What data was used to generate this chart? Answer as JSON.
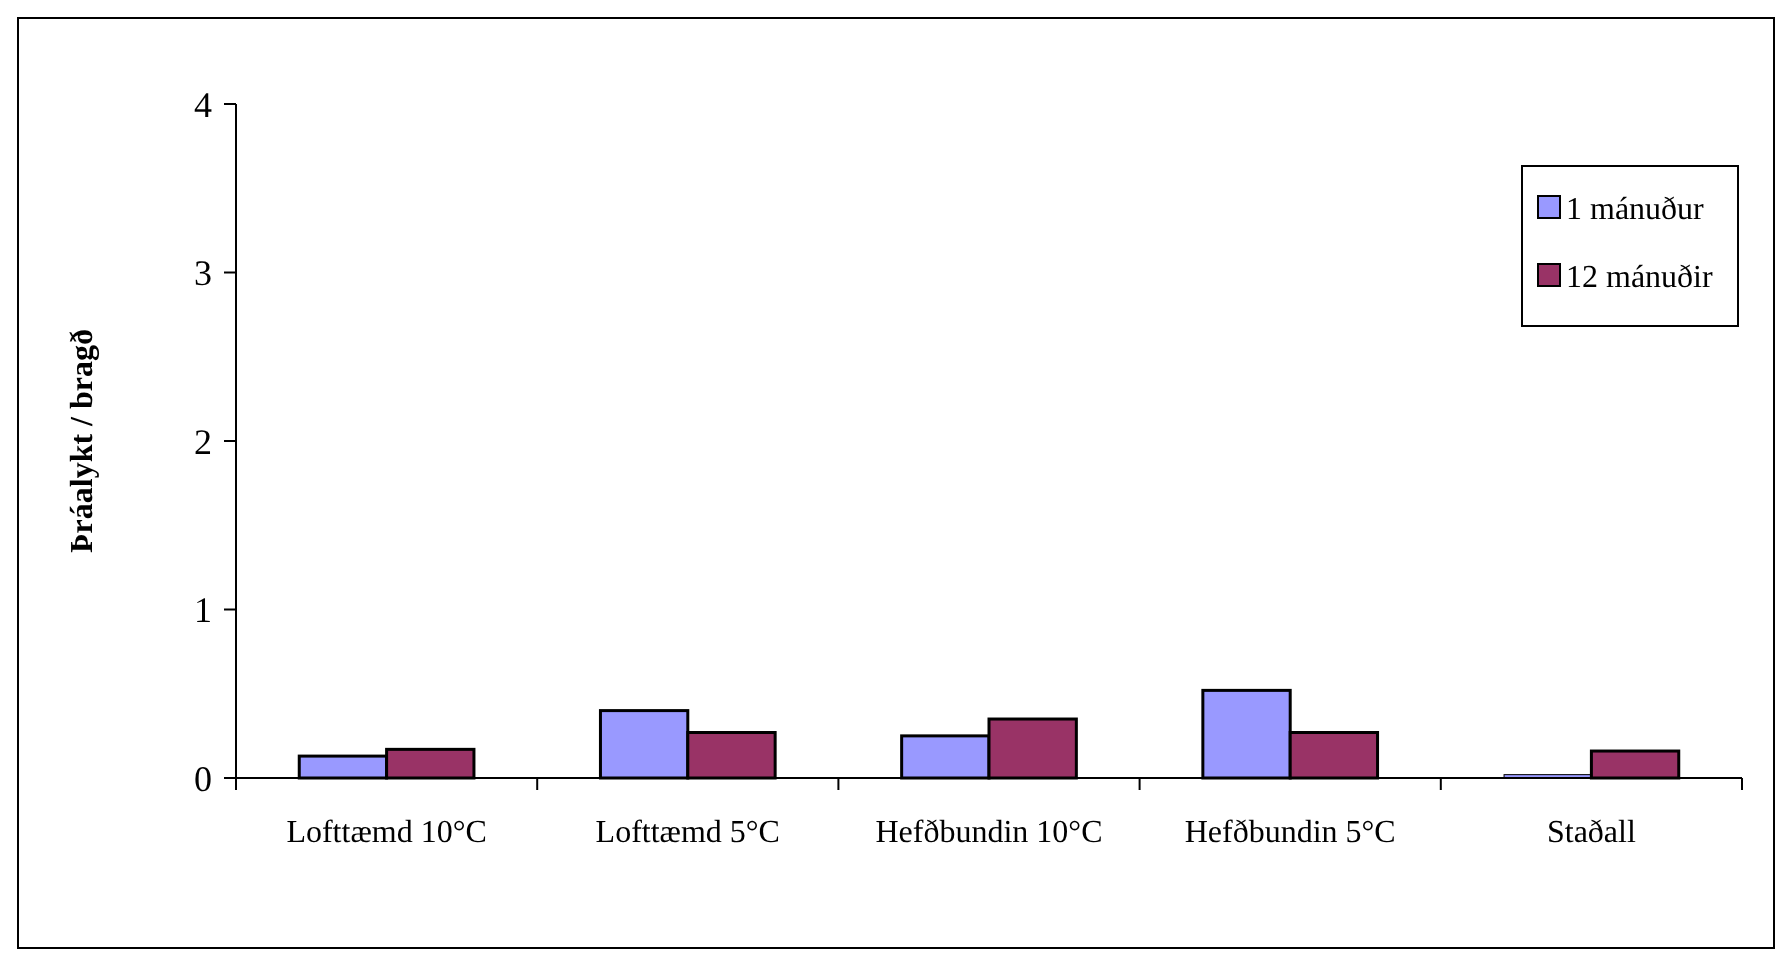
{
  "chart_data": {
    "type": "bar",
    "ylabel": "Þráalykt / bragð",
    "categories": [
      "Lofttæmd 10°C",
      "Lofttæmd 5°C",
      "Hefðbundin 10°C",
      "Hefðbundin 5°C",
      "Staðall"
    ],
    "series": [
      {
        "name": "1 mánuður",
        "color": "#9999ff",
        "values": [
          0.13,
          0.4,
          0.25,
          0.52,
          0.02
        ]
      },
      {
        "name": "12 mánuðir",
        "color": "#993366",
        "values": [
          0.17,
          0.27,
          0.35,
          0.27,
          0.16
        ]
      }
    ],
    "ylim": [
      0,
      4
    ],
    "yticks": [
      0,
      1,
      2,
      3,
      4
    ],
    "grid": false,
    "legend": "top right"
  }
}
